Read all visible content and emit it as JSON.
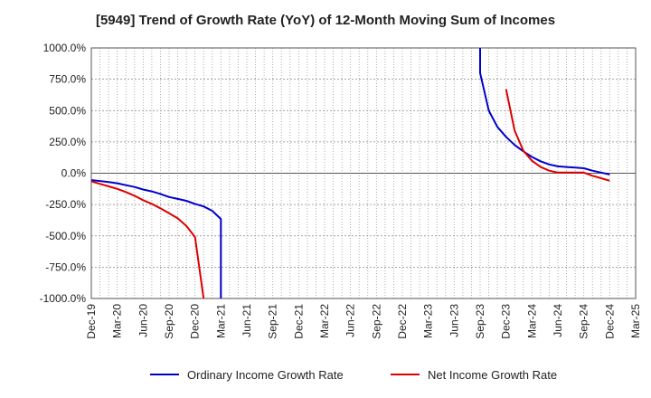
{
  "chart_data": {
    "type": "line",
    "title": "[5949]  Trend of Growth Rate (YoY) of 12-Month Moving Sum of Incomes",
    "ylim": [
      -1000,
      1000
    ],
    "y_ticks": [
      1000,
      750,
      500,
      250,
      0,
      -250,
      -500,
      -750,
      -1000
    ],
    "y_tick_labels": [
      "1000.0%",
      "750.0%",
      "500.0%",
      "250.0%",
      "0.0%",
      "-250.0%",
      "-500.0%",
      "-750.0%",
      "-1000.0%"
    ],
    "x_tick_labels": [
      "Dec-19",
      "Mar-20",
      "Jun-20",
      "Sep-20",
      "Dec-20",
      "Mar-21",
      "Jun-21",
      "Sep-21",
      "Dec-21",
      "Mar-22",
      "Jun-22",
      "Sep-22",
      "Dec-22",
      "Mar-23",
      "Jun-23",
      "Sep-23",
      "Dec-23",
      "Mar-24",
      "Jun-24",
      "Sep-24",
      "Dec-24",
      "Mar-25"
    ],
    "grid": true,
    "legend_position": "bottom",
    "series": [
      {
        "name": "Ordinary Income Growth Rate",
        "color": "#0000cc",
        "segments": [
          [
            [
              "Dec-19",
              -55
            ],
            [
              "Jan-20",
              -62
            ],
            [
              "Feb-20",
              -70
            ],
            [
              "Mar-20",
              -80
            ],
            [
              "Apr-20",
              -95
            ],
            [
              "May-20",
              -110
            ],
            [
              "Jun-20",
              -130
            ],
            [
              "Jul-20",
              -145
            ],
            [
              "Aug-20",
              -165
            ],
            [
              "Sep-20",
              -190
            ],
            [
              "Oct-20",
              -205
            ],
            [
              "Nov-20",
              -220
            ],
            [
              "Dec-20",
              -245
            ],
            [
              "Jan-21",
              -265
            ],
            [
              "Feb-21",
              -300
            ],
            [
              "Mar-21",
              -365
            ],
            [
              "Mar-21",
              -1000
            ]
          ],
          [
            [
              "Sep-23",
              1000
            ],
            [
              "Sep-23",
              800
            ],
            [
              "Oct-23",
              500
            ],
            [
              "Nov-23",
              370
            ],
            [
              "Dec-23",
              290
            ],
            [
              "Jan-24",
              225
            ],
            [
              "Feb-24",
              175
            ],
            [
              "Mar-24",
              130
            ],
            [
              "Apr-24",
              95
            ],
            [
              "May-24",
              70
            ],
            [
              "Jun-24",
              55
            ],
            [
              "Jul-24",
              50
            ],
            [
              "Aug-24",
              45
            ],
            [
              "Sep-24",
              40
            ],
            [
              "Oct-24",
              20
            ],
            [
              "Nov-24",
              5
            ],
            [
              "Dec-24",
              -10
            ]
          ]
        ]
      },
      {
        "name": "Net Income Growth Rate",
        "color": "#dd0000",
        "segments": [
          [
            [
              "Dec-19",
              -65
            ],
            [
              "Jan-20",
              -85
            ],
            [
              "Feb-20",
              -105
            ],
            [
              "Mar-20",
              -125
            ],
            [
              "Apr-20",
              -150
            ],
            [
              "May-20",
              -180
            ],
            [
              "Jun-20",
              -215
            ],
            [
              "Jul-20",
              -245
            ],
            [
              "Aug-20",
              -280
            ],
            [
              "Sep-20",
              -320
            ],
            [
              "Oct-20",
              -360
            ],
            [
              "Nov-20",
              -420
            ],
            [
              "Dec-20",
              -510
            ],
            [
              "Jan-21",
              -1000
            ]
          ],
          [
            [
              "Dec-23",
              670
            ],
            [
              "Jan-24",
              340
            ],
            [
              "Feb-24",
              180
            ],
            [
              "Mar-24",
              100
            ],
            [
              "Apr-24",
              50
            ],
            [
              "May-24",
              20
            ],
            [
              "Jun-24",
              5
            ],
            [
              "Jul-24",
              5
            ],
            [
              "Aug-24",
              5
            ],
            [
              "Sep-24",
              5
            ],
            [
              "Oct-24",
              -20
            ],
            [
              "Nov-24",
              -40
            ],
            [
              "Dec-24",
              -60
            ]
          ]
        ]
      }
    ]
  }
}
